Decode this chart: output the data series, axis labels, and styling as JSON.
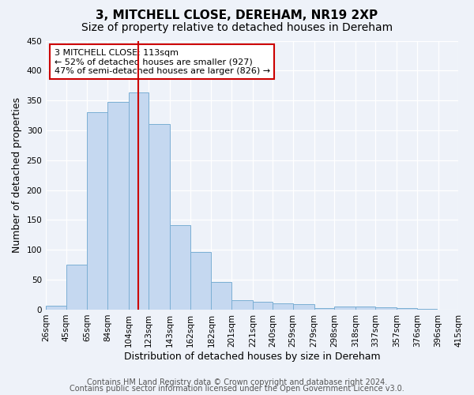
{
  "title": "3, MITCHELL CLOSE, DEREHAM, NR19 2XP",
  "subtitle": "Size of property relative to detached houses in Dereham",
  "xlabel": "Distribution of detached houses by size in Dereham",
  "ylabel": "Number of detached properties",
  "bar_left_edges": [
    26,
    45,
    65,
    84,
    104,
    123,
    143,
    162,
    182,
    201,
    221,
    240,
    259,
    279,
    298,
    318,
    337,
    357,
    376
  ],
  "bar_heights": [
    7,
    75,
    330,
    348,
    363,
    310,
    142,
    97,
    46,
    16,
    13,
    11,
    9,
    3,
    5,
    5,
    4,
    2,
    1
  ],
  "bar_color": "#c5d8f0",
  "bar_edgecolor": "#7bafd4",
  "tick_labels": [
    "26sqm",
    "45sqm",
    "65sqm",
    "84sqm",
    "104sqm",
    "123sqm",
    "143sqm",
    "162sqm",
    "182sqm",
    "201sqm",
    "221sqm",
    "240sqm",
    "259sqm",
    "279sqm",
    "298sqm",
    "318sqm",
    "337sqm",
    "357sqm",
    "376sqm",
    "396sqm",
    "415sqm"
  ],
  "tick_positions": [
    26,
    45,
    65,
    84,
    104,
    123,
    143,
    162,
    182,
    201,
    221,
    240,
    259,
    279,
    298,
    318,
    337,
    357,
    376,
    396,
    415
  ],
  "vline_x": 113,
  "vline_color": "#cc0000",
  "ylim": [
    0,
    450
  ],
  "yticks": [
    0,
    50,
    100,
    150,
    200,
    250,
    300,
    350,
    400,
    450
  ],
  "annotation_box_text": "3 MITCHELL CLOSE: 113sqm\n← 52% of detached houses are smaller (927)\n47% of semi-detached houses are larger (826) →",
  "annotation_box_color": "#ffffff",
  "annotation_border_color": "#cc0000",
  "footer_line1": "Contains HM Land Registry data © Crown copyright and database right 2024.",
  "footer_line2": "Contains public sector information licensed under the Open Government Licence v3.0.",
  "bg_color": "#eef2f9",
  "grid_color": "#ffffff",
  "title_fontsize": 11,
  "subtitle_fontsize": 10,
  "axis_label_fontsize": 9,
  "tick_fontsize": 7.5,
  "footer_fontsize": 7,
  "xlim": [
    26,
    415
  ]
}
